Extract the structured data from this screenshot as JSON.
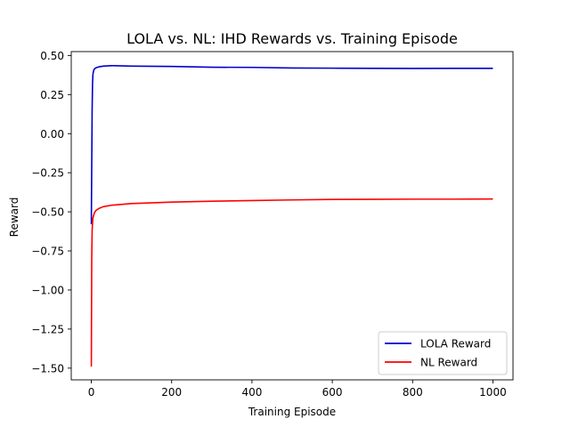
{
  "chart_data": {
    "type": "line",
    "title": "LOLA vs. NL: IHD Rewards vs. Training Episode",
    "xlabel": "Training Episode",
    "ylabel": "Reward",
    "xlim": [
      -50,
      1050
    ],
    "ylim": [
      -1.575,
      0.525
    ],
    "xticks": [
      0,
      200,
      400,
      600,
      800,
      1000
    ],
    "xtick_labels": [
      "0",
      "200",
      "400",
      "600",
      "800",
      "1000"
    ],
    "yticks": [
      0.5,
      0.25,
      0.0,
      -0.25,
      -0.5,
      -0.75,
      -1.0,
      -1.25,
      -1.5
    ],
    "ytick_labels": [
      "0.50",
      "0.25",
      "0.00",
      "−0.25",
      "−0.50",
      "−0.75",
      "−1.00",
      "−1.25",
      "−1.50"
    ],
    "grid": false,
    "legend_position": "lower-right",
    "series": [
      {
        "name": "LOLA Reward",
        "color": "#0000cc",
        "x": [
          0,
          1,
          2,
          3,
          4,
          6,
          8,
          12,
          20,
          30,
          50,
          100,
          200,
          300,
          400,
          500,
          600,
          700,
          800,
          900,
          1000
        ],
        "y": [
          -0.58,
          -0.2,
          0.15,
          0.32,
          0.38,
          0.405,
          0.415,
          0.422,
          0.428,
          0.432,
          0.435,
          0.432,
          0.43,
          0.425,
          0.424,
          0.42,
          0.419,
          0.418,
          0.417,
          0.418,
          0.418
        ]
      },
      {
        "name": "NL Reward",
        "color": "#ff0000",
        "x": [
          0,
          1,
          2,
          3,
          4,
          6,
          8,
          12,
          20,
          30,
          50,
          100,
          200,
          300,
          400,
          500,
          600,
          700,
          800,
          900,
          1000
        ],
        "y": [
          -1.49,
          -0.8,
          -0.62,
          -0.57,
          -0.54,
          -0.52,
          -0.505,
          -0.49,
          -0.477,
          -0.467,
          -0.458,
          -0.447,
          -0.438,
          -0.432,
          -0.428,
          -0.424,
          -0.421,
          -0.42,
          -0.419,
          -0.419,
          -0.418
        ]
      }
    ]
  }
}
